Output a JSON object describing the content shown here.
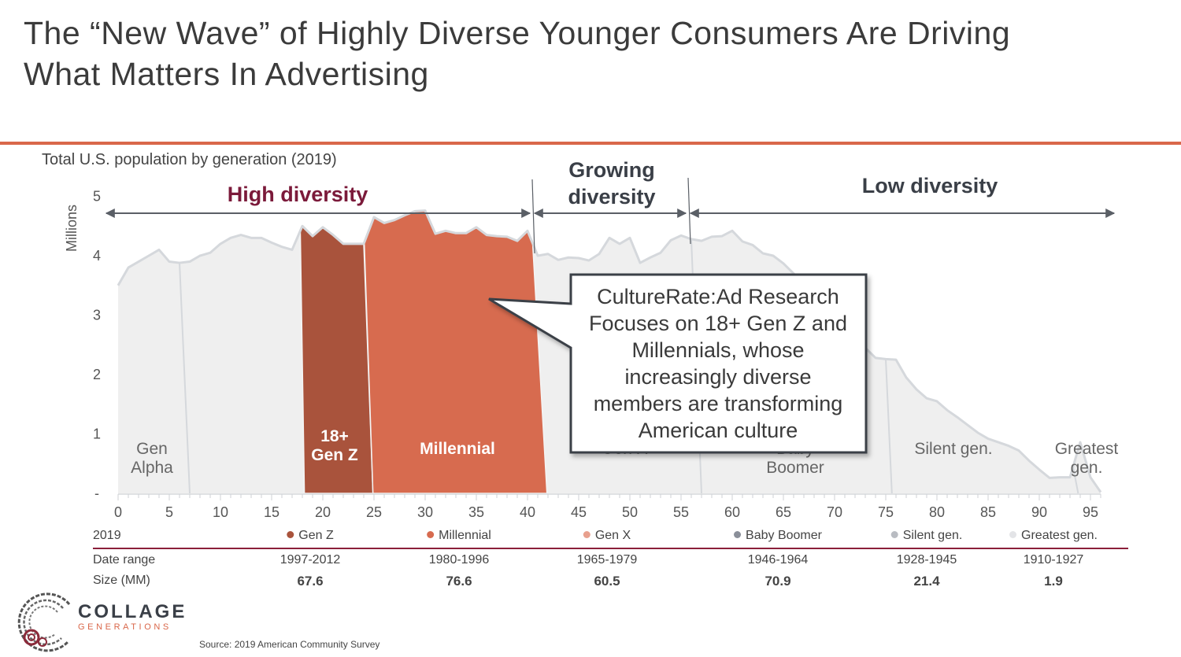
{
  "slide": {
    "title_line1": "The “New Wave” of Highly Diverse Younger Consumers Are Driving",
    "title_line2": "What Matters In Advertising",
    "subtitle": "Total U.S. population by generation (2019)",
    "accent_color": "#d9674a",
    "source": "Source: 2019 American Community Survey"
  },
  "logo": {
    "name": "COLLAGE",
    "sub": "GENERATIONS"
  },
  "regions": {
    "high": "High diversity",
    "growing_line1": "Growing",
    "growing_line2": "diversity",
    "low": "Low diversity"
  },
  "callout": {
    "lines": [
      "CultureRate:Ad Research",
      "Focuses on 18+ Gen Z and",
      "Millennials, whose",
      "increasingly diverse",
      "members are transforming",
      "American culture"
    ]
  },
  "chart_data": {
    "type": "area",
    "title": "Total U.S. population by generation (2019)",
    "xlabel": "",
    "ylabel": "Millions",
    "xlim": [
      0,
      96
    ],
    "ylim": [
      0,
      5
    ],
    "x_ticks": [
      "0",
      "5",
      "10",
      "15",
      "20",
      "25",
      "30",
      "35",
      "40",
      "45",
      "50",
      "55",
      "60",
      "65",
      "70",
      "75",
      "80",
      "85",
      "90",
      "95"
    ],
    "y_ticks": [
      "-",
      "1",
      "2",
      "3",
      "4",
      "5"
    ],
    "grid": false,
    "x": [
      0,
      1,
      2,
      3,
      4,
      5,
      6,
      7,
      8,
      9,
      10,
      11,
      12,
      13,
      14,
      15,
      16,
      17,
      18,
      19,
      20,
      21,
      22,
      23,
      24,
      25,
      26,
      27,
      28,
      29,
      30,
      31,
      32,
      33,
      34,
      35,
      36,
      37,
      38,
      39,
      40,
      41,
      42,
      43,
      44,
      45,
      46,
      47,
      48,
      49,
      50,
      51,
      52,
      53,
      54,
      55,
      56,
      57,
      58,
      59,
      60,
      61,
      62,
      63,
      64,
      65,
      66,
      67,
      68,
      69,
      70,
      71,
      72,
      73,
      74,
      75,
      76,
      77,
      78,
      79,
      80,
      81,
      82,
      83,
      84,
      85,
      86,
      87,
      88,
      89,
      90,
      91,
      92,
      93,
      94,
      95,
      96
    ],
    "values": [
      3.5,
      3.8,
      3.9,
      4.0,
      4.1,
      3.9,
      3.88,
      3.9,
      4.0,
      4.05,
      4.2,
      4.3,
      4.35,
      4.3,
      4.3,
      4.22,
      4.15,
      4.1,
      4.5,
      4.33,
      4.48,
      4.35,
      4.2,
      4.2,
      4.2,
      4.65,
      4.55,
      4.6,
      4.68,
      4.75,
      4.76,
      4.37,
      4.42,
      4.38,
      4.38,
      4.48,
      4.35,
      4.33,
      4.32,
      4.25,
      4.42,
      4.0,
      4.03,
      3.93,
      3.97,
      3.96,
      3.92,
      4.03,
      4.3,
      4.2,
      4.3,
      3.88,
      3.97,
      4.05,
      4.26,
      4.34,
      4.28,
      4.25,
      4.32,
      4.33,
      4.42,
      4.24,
      4.18,
      4.04,
      4.0,
      3.87,
      3.7,
      3.5,
      3.3,
      3.1,
      2.9,
      2.75,
      2.6,
      2.45,
      2.28,
      2.26,
      2.25,
      1.95,
      1.75,
      1.6,
      1.55,
      1.4,
      1.28,
      1.15,
      1.02,
      0.92,
      0.86,
      0.8,
      0.72,
      0.55,
      0.4,
      0.26,
      0.27,
      0.27,
      0.86,
      0.27,
      0.02
    ],
    "highlights": [
      {
        "name": "18+ Gen Z",
        "from_age": 18,
        "to_age": 24,
        "color": "#a9533c"
      },
      {
        "name": "Millennial",
        "from_age": 25,
        "to_age": 40,
        "color": "#d76b4f"
      }
    ],
    "area_color": "#efefef",
    "generation_labels": [
      {
        "line1": "Gen",
        "line2": "Alpha"
      },
      {
        "line1": "18+",
        "line2": "Gen Z"
      },
      {
        "line1": "Millennial",
        "line2": ""
      },
      {
        "line1": "Gen X",
        "line2": ""
      },
      {
        "line1": "Baby",
        "line2": "Boomer"
      },
      {
        "line1": "Silent gen.",
        "line2": ""
      },
      {
        "line1": "Greatest",
        "line2": "gen."
      }
    ]
  },
  "table": {
    "year": "2019",
    "row_labels": {
      "range": "Date range",
      "size": "Size (MM)"
    },
    "columns": [
      {
        "name": "Gen Z",
        "color": "#a9533c",
        "range": "1997-2012",
        "size": "67.6"
      },
      {
        "name": "Millennial",
        "color": "#d76b4f",
        "range": "1980-1996",
        "size": "76.6"
      },
      {
        "name": "Gen X",
        "color": "#e8a08e",
        "range": "1965-1979",
        "size": "60.5"
      },
      {
        "name": "Baby Boomer",
        "color": "#8a8f99",
        "range": "1946-1964",
        "size": "70.9"
      },
      {
        "name": "Silent gen.",
        "color": "#b9bcc2",
        "range": "1928-1945",
        "size": "21.4"
      },
      {
        "name": "Greatest gen.",
        "color": "#e3e4e7",
        "range": "1910-1927",
        "size": "1.9"
      }
    ]
  }
}
